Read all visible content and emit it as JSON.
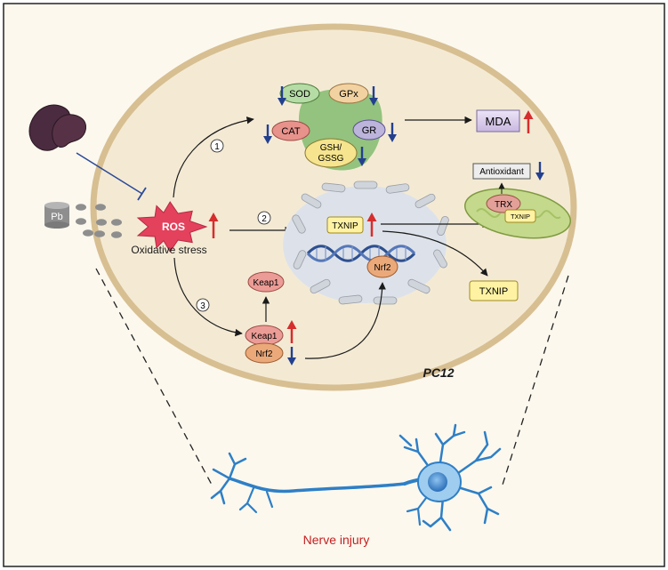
{
  "cell_label": "PC12",
  "ros": {
    "label": "ROS",
    "caption": "Oxidative stress"
  },
  "lead": {
    "label": "Pb"
  },
  "pathway_numbers": [
    "1",
    "2",
    "3"
  ],
  "enzymes": {
    "sod": "SOD",
    "gpx": "GPx",
    "cat": "CAT",
    "gr": "GR",
    "gsh_line1": "GSH/",
    "gsh_line2": "GSSG"
  },
  "mda": "MDA",
  "txnip_nuclear": "TXNIP",
  "nrf2_nuclear": "Nrf2",
  "txnip_out": "TXNIP",
  "mito": {
    "antioxidant": "Antioxidant",
    "trx": "TRX",
    "txnip": "TXNIP"
  },
  "keap1_free": "Keap1",
  "complex": {
    "keap1": "Keap1",
    "nrf2": "Nrf2"
  },
  "neuron_label": "Nerve injury",
  "colors": {
    "background": "#fcf8ee",
    "cell_fill": "#f4ead4",
    "cell_border": "#d7bf92",
    "up_arrow": "#d62d2d",
    "down_arrow": "#23408f",
    "ros_fill": "#e4415c",
    "nucleus_fill": "#dde2ea",
    "neuron": "#2e7fc6"
  }
}
